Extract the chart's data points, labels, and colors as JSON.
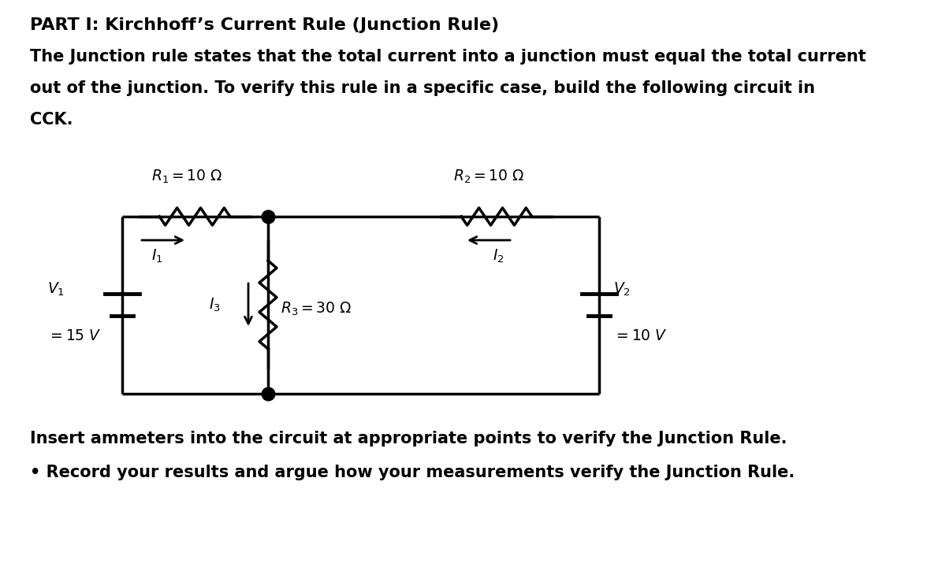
{
  "title": "PART I: Kirchhoff’s Current Rule (Junction Rule)",
  "para1": "The Junction rule states that the total current into a junction must equal the total current",
  "para2": "out of the junction. To verify this rule in a specific case, build the following circuit in",
  "para3": "CCK.",
  "footer1": "Insert ammeters into the circuit at appropriate points to verify the Junction Rule.",
  "footer2": "• Record your results and argue how your measurements verify the Junction Rule.",
  "bg_color": "#ffffff",
  "text_color": "#000000",
  "line_color": "#000000",
  "title_fontsize": 16,
  "body_fontsize": 15,
  "circuit_label_fontsize": 13.5
}
